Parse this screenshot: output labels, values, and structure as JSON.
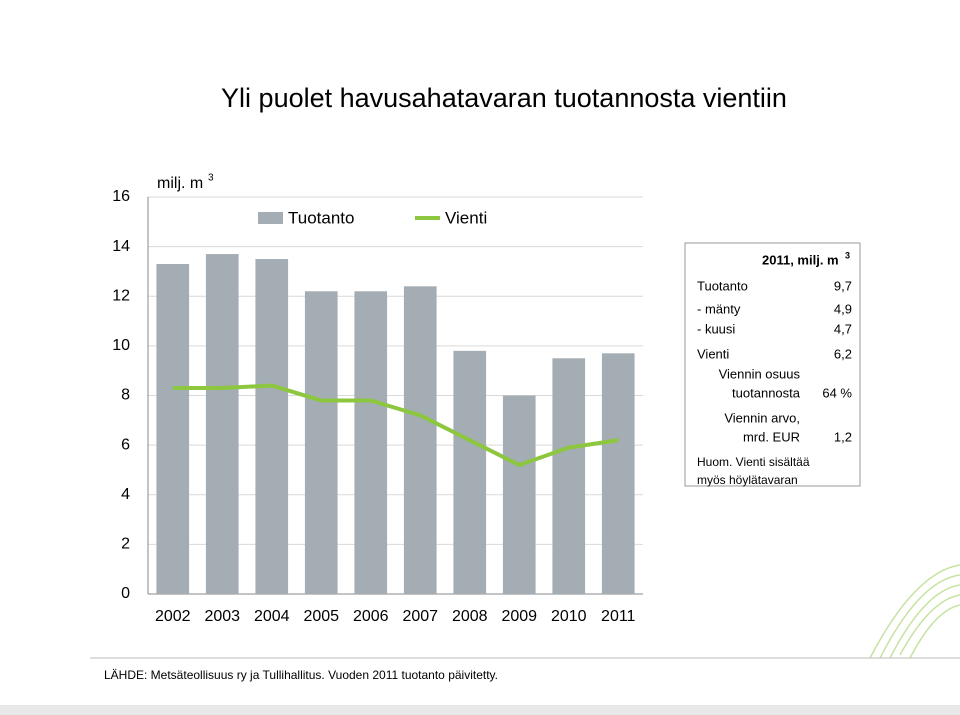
{
  "chart_data": {
    "type": "combo",
    "title": "Yli puolet havusahatavaran tuotannosta vientiin",
    "unit": "milj. m",
    "unit_sup": "3",
    "categories": [
      "2002",
      "2003",
      "2004",
      "2005",
      "2006",
      "2007",
      "2008",
      "2009",
      "2010",
      "2011"
    ],
    "series": [
      {
        "name": "Tuotanto",
        "type": "bar",
        "color": "#a3adb3",
        "values": [
          13.3,
          13.7,
          13.5,
          12.2,
          12.2,
          12.4,
          9.8,
          8.0,
          9.5,
          9.7
        ]
      },
      {
        "name": "Vienti",
        "type": "line",
        "color": "#8dc63f",
        "values": [
          8.3,
          8.3,
          8.4,
          7.8,
          7.8,
          7.2,
          6.2,
          5.2,
          5.9,
          6.2
        ]
      }
    ],
    "ylim": [
      0,
      16
    ],
    "yticks": [
      0,
      2,
      4,
      6,
      8,
      10,
      12,
      14,
      16
    ],
    "grid": true,
    "side_table": {
      "title": "2011, milj. m",
      "title_sup": "3",
      "rows": [
        {
          "label": [
            "Tuotanto"
          ],
          "value": "9,7"
        },
        {
          "label": [
            "- mänty"
          ],
          "value": "4,9"
        },
        {
          "label": [
            "- kuusi"
          ],
          "value": "4,7"
        },
        {
          "label": [
            "Vienti"
          ],
          "value": "6,2"
        },
        {
          "label": [
            "Viennin osuus",
            "tuotannosta"
          ],
          "value": "64 %"
        },
        {
          "label": [
            "Viennin arvo,",
            "mrd. EUR"
          ],
          "value": "1,2"
        }
      ],
      "note": [
        "Huom. Vienti sisältää",
        "myös höylätavaran"
      ]
    },
    "source": "LÄHDE: Metsäteollisuus ry ja Tullihallitus. Vuoden 2011 tuotanto päivitetty."
  }
}
